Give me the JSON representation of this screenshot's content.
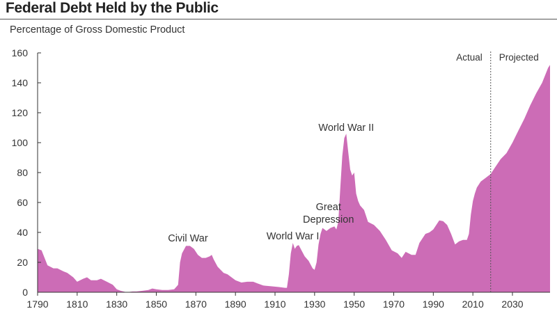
{
  "header": {
    "title": "Federal Debt Held by the Public",
    "subtitle": "Percentage of Gross Domestic Product"
  },
  "colors": {
    "area": "#cc6cb6",
    "axis": "#333333",
    "divider": "#555555"
  },
  "chart_data": {
    "type": "area",
    "title": "Federal Debt Held by the Public",
    "subtitle": "Percentage of Gross Domestic Product",
    "xlabel": "",
    "ylabel": "",
    "xlim": [
      1790,
      2049
    ],
    "ylim": [
      0,
      160
    ],
    "grid": false,
    "x_ticks": [
      "1790",
      "1810",
      "1830",
      "1850",
      "1870",
      "1890",
      "1910",
      "1930",
      "1950",
      "1970",
      "1990",
      "2010",
      "2030"
    ],
    "y_ticks": [
      "0",
      "20",
      "40",
      "60",
      "80",
      "100",
      "120",
      "140",
      "160"
    ],
    "divider_year": 2019,
    "segments": [
      "Actual",
      "Projected"
    ],
    "annotations": [
      {
        "text": "Civil War",
        "year": 1866
      },
      {
        "text": "World War I",
        "year": 1919
      },
      {
        "text": "Great",
        "year": 1937
      },
      {
        "text": "Depression",
        "year": 1937
      },
      {
        "text": "World War II",
        "year": 1946
      }
    ],
    "series": [
      {
        "points": [
          [
            1790,
            29
          ],
          [
            1792,
            28
          ],
          [
            1795,
            18
          ],
          [
            1798,
            16
          ],
          [
            1800,
            16
          ],
          [
            1803,
            14
          ],
          [
            1805,
            13
          ],
          [
            1808,
            10
          ],
          [
            1810,
            7
          ],
          [
            1813,
            9
          ],
          [
            1815,
            10
          ],
          [
            1817,
            8
          ],
          [
            1820,
            8
          ],
          [
            1822,
            9
          ],
          [
            1825,
            7
          ],
          [
            1828,
            5
          ],
          [
            1830,
            2
          ],
          [
            1832,
            1
          ],
          [
            1835,
            0
          ],
          [
            1838,
            0.5
          ],
          [
            1840,
            0.5
          ],
          [
            1843,
            1
          ],
          [
            1846,
            1.5
          ],
          [
            1848,
            2.5
          ],
          [
            1850,
            2
          ],
          [
            1853,
            1.5
          ],
          [
            1856,
            1.5
          ],
          [
            1859,
            2
          ],
          [
            1861,
            5
          ],
          [
            1862,
            20
          ],
          [
            1863,
            26
          ],
          [
            1865,
            31
          ],
          [
            1867,
            31
          ],
          [
            1869,
            29
          ],
          [
            1871,
            25
          ],
          [
            1873,
            23
          ],
          [
            1875,
            23
          ],
          [
            1877,
            24
          ],
          [
            1878,
            25
          ],
          [
            1879,
            22
          ],
          [
            1881,
            17
          ],
          [
            1884,
            13
          ],
          [
            1886,
            12
          ],
          [
            1888,
            10
          ],
          [
            1890,
            8
          ],
          [
            1893,
            6.5
          ],
          [
            1896,
            7
          ],
          [
            1899,
            7
          ],
          [
            1901,
            6
          ],
          [
            1904,
            4.5
          ],
          [
            1908,
            4
          ],
          [
            1912,
            3.5
          ],
          [
            1915,
            3
          ],
          [
            1916,
            3
          ],
          [
            1917,
            12
          ],
          [
            1918,
            26
          ],
          [
            1919,
            33
          ],
          [
            1920,
            29
          ],
          [
            1921,
            31
          ],
          [
            1922,
            31.5
          ],
          [
            1923,
            29
          ],
          [
            1925,
            24
          ],
          [
            1927,
            21
          ],
          [
            1929,
            16
          ],
          [
            1930,
            15
          ],
          [
            1931,
            20
          ],
          [
            1932,
            32
          ],
          [
            1933,
            39
          ],
          [
            1934,
            43
          ],
          [
            1936,
            41
          ],
          [
            1938,
            43
          ],
          [
            1940,
            44
          ],
          [
            1941,
            42
          ],
          [
            1942,
            47
          ],
          [
            1943,
            70
          ],
          [
            1944,
            91
          ],
          [
            1945,
            103
          ],
          [
            1946,
            106
          ],
          [
            1947,
            94
          ],
          [
            1948,
            82
          ],
          [
            1949,
            78
          ],
          [
            1950,
            80
          ],
          [
            1951,
            66
          ],
          [
            1952,
            61
          ],
          [
            1953,
            58
          ],
          [
            1955,
            55
          ],
          [
            1957,
            47
          ],
          [
            1960,
            45
          ],
          [
            1963,
            41
          ],
          [
            1966,
            35
          ],
          [
            1969,
            28
          ],
          [
            1972,
            26
          ],
          [
            1974,
            23
          ],
          [
            1976,
            27
          ],
          [
            1979,
            25
          ],
          [
            1981,
            25
          ],
          [
            1983,
            33
          ],
          [
            1986,
            39
          ],
          [
            1988,
            40
          ],
          [
            1990,
            42
          ],
          [
            1993,
            48
          ],
          [
            1995,
            47.5
          ],
          [
            1997,
            45
          ],
          [
            1999,
            39
          ],
          [
            2001,
            32
          ],
          [
            2003,
            34
          ],
          [
            2005,
            35
          ],
          [
            2007,
            35
          ],
          [
            2008,
            39
          ],
          [
            2009,
            52
          ],
          [
            2010,
            61
          ],
          [
            2011,
            66
          ],
          [
            2012,
            70
          ],
          [
            2014,
            74
          ],
          [
            2016,
            76
          ],
          [
            2018,
            78
          ],
          [
            2019,
            79
          ],
          [
            2021,
            83
          ],
          [
            2024,
            89
          ],
          [
            2027,
            93
          ],
          [
            2030,
            100
          ],
          [
            2033,
            108
          ],
          [
            2036,
            116
          ],
          [
            2039,
            125
          ],
          [
            2042,
            133
          ],
          [
            2045,
            140
          ],
          [
            2048,
            150
          ],
          [
            2049,
            152
          ]
        ]
      }
    ]
  }
}
